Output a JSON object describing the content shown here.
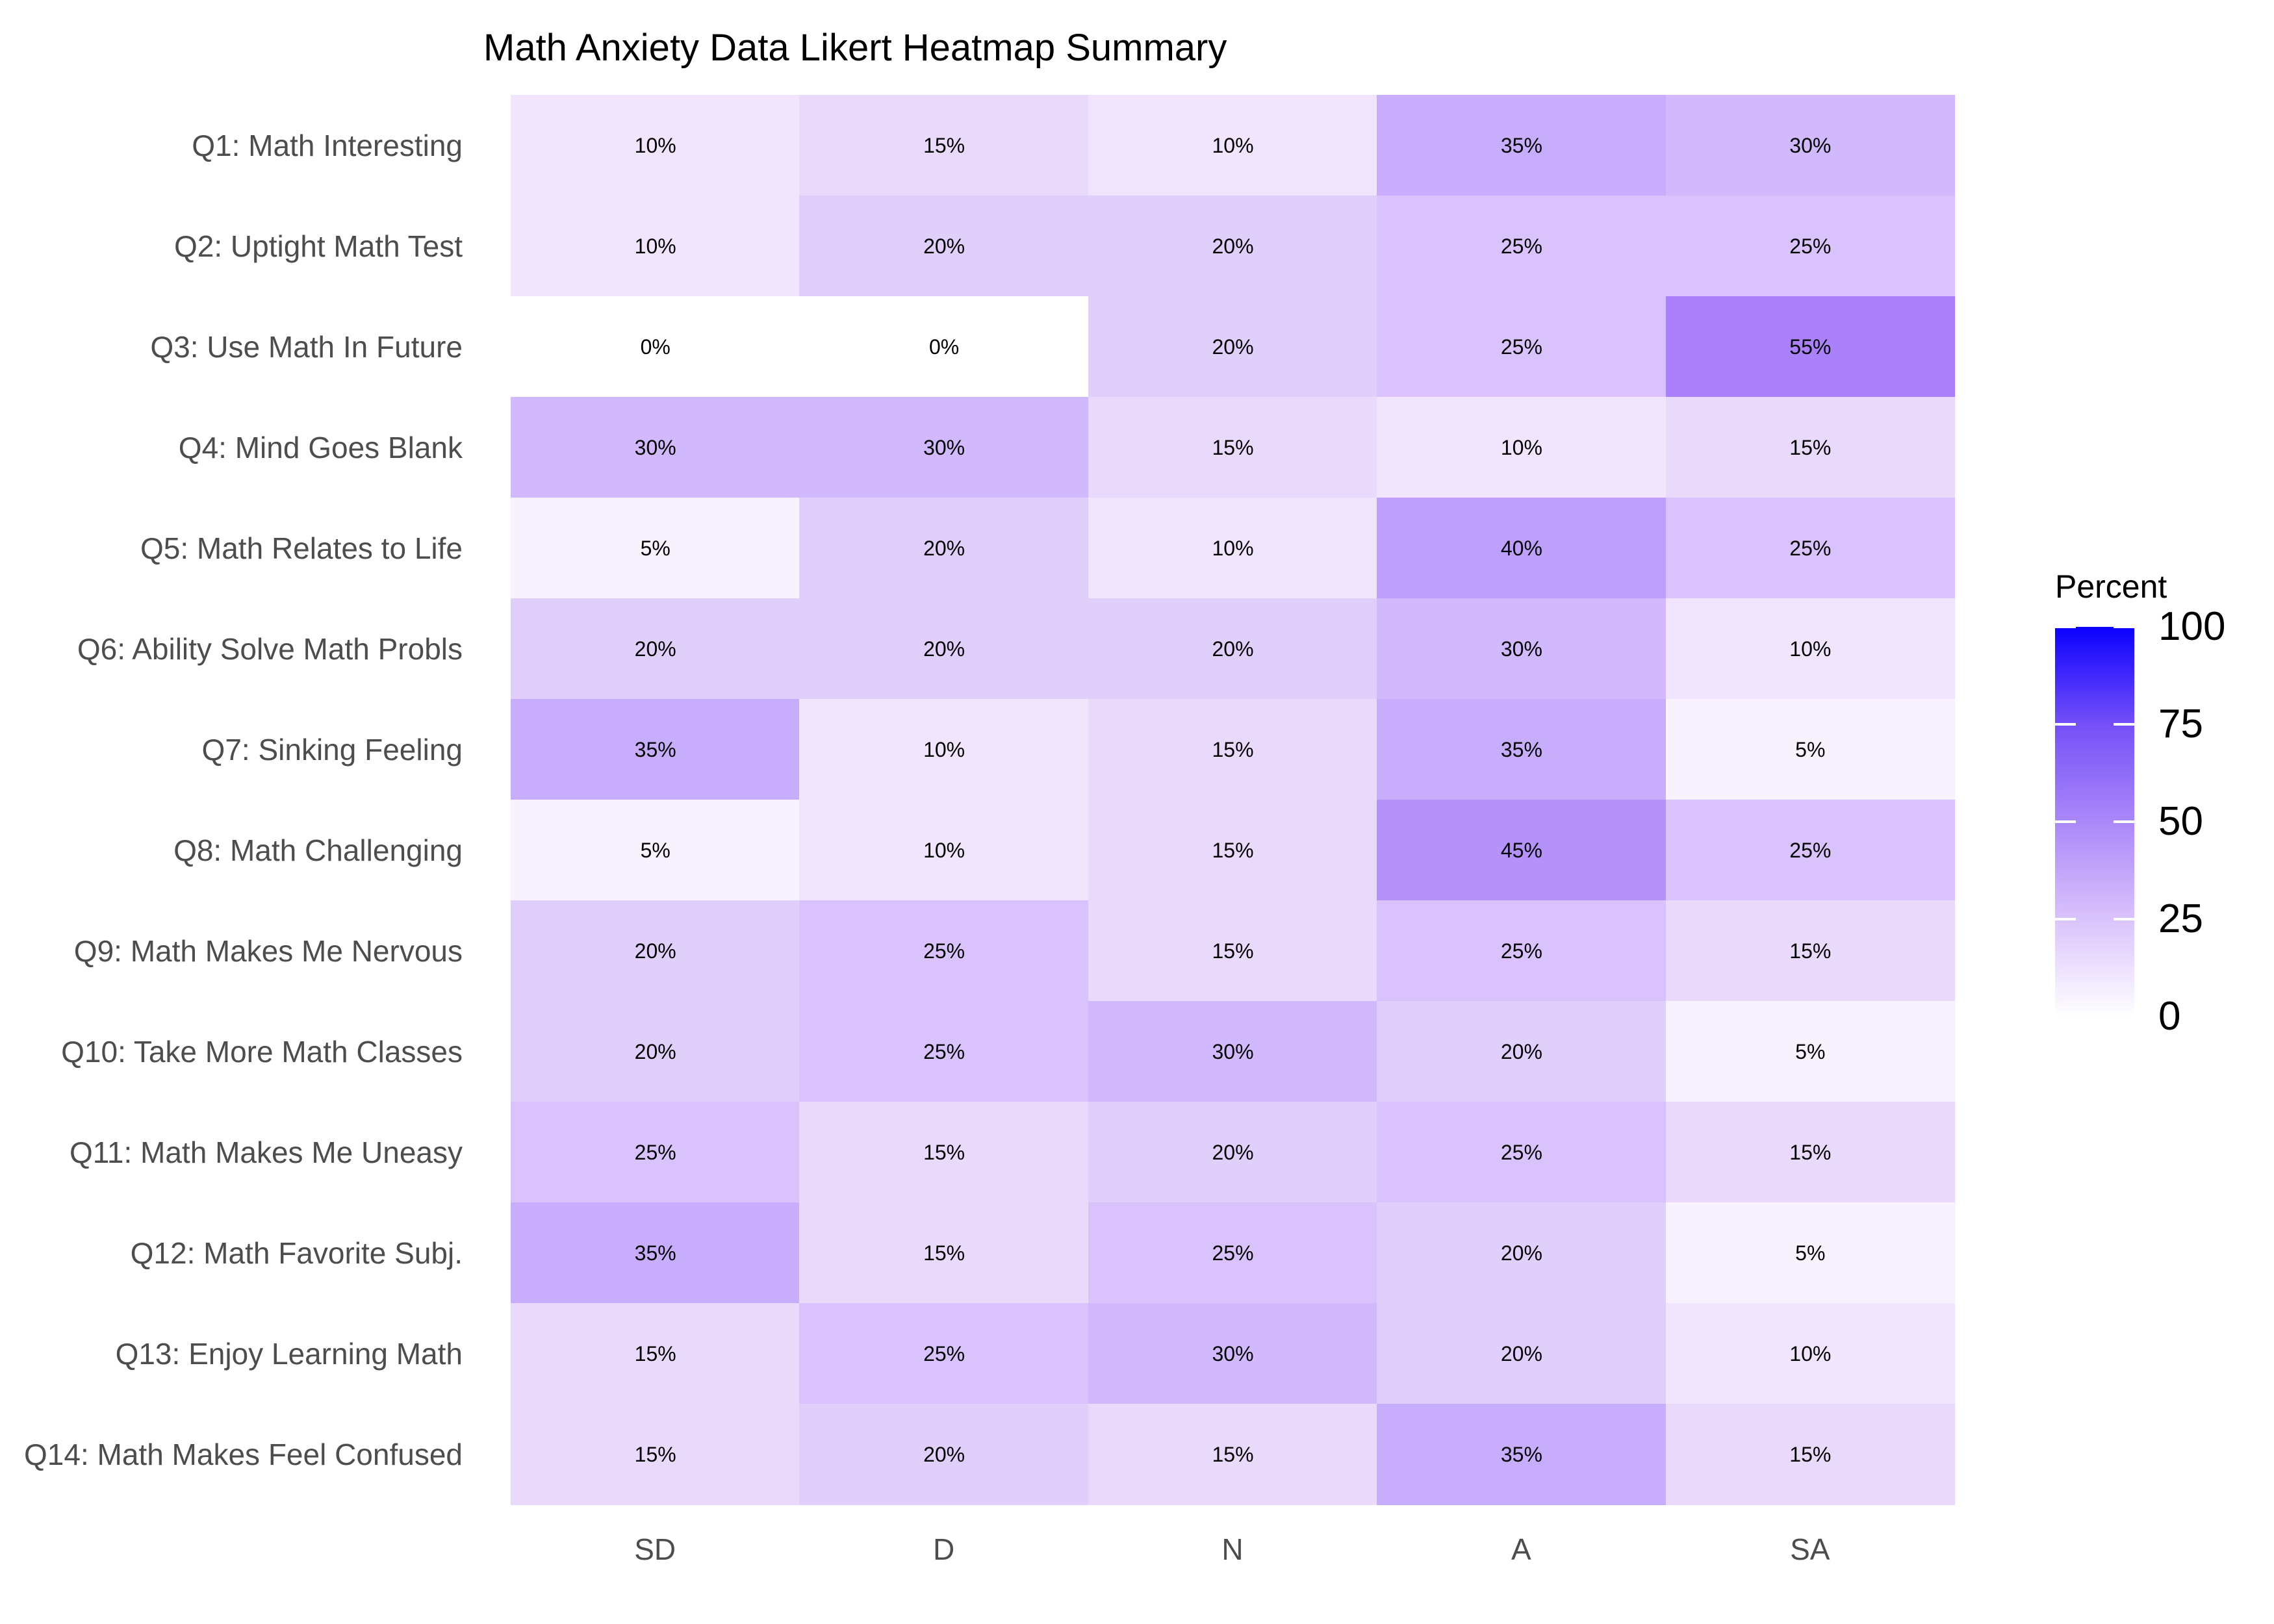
{
  "chart_data": {
    "type": "heatmap",
    "title": "Math Anxiety Data Likert Heatmap Summary",
    "rows": [
      "Q1: Math Interesting",
      "Q2: Uptight Math Test",
      "Q3: Use Math In Future",
      "Q4: Mind Goes Blank",
      "Q5: Math Relates to Life",
      "Q6: Ability Solve Math Probls",
      "Q7: Sinking Feeling",
      "Q8: Math Challenging",
      "Q9: Math Makes Me Nervous",
      "Q10: Take More Math Classes",
      "Q11: Math Makes Me Uneasy",
      "Q12: Math Favorite Subj.",
      "Q13: Enjoy Learning Math",
      "Q14: Math Makes Feel Confused"
    ],
    "columns": [
      "SD",
      "D",
      "N",
      "A",
      "SA"
    ],
    "values": [
      [
        10,
        15,
        10,
        35,
        30
      ],
      [
        10,
        20,
        20,
        25,
        25
      ],
      [
        0,
        0,
        20,
        25,
        55
      ],
      [
        30,
        30,
        15,
        10,
        15
      ],
      [
        5,
        20,
        10,
        40,
        25
      ],
      [
        20,
        20,
        20,
        30,
        10
      ],
      [
        35,
        10,
        15,
        35,
        5
      ],
      [
        5,
        10,
        15,
        45,
        25
      ],
      [
        20,
        25,
        15,
        25,
        15
      ],
      [
        20,
        25,
        30,
        20,
        5
      ],
      [
        25,
        15,
        20,
        25,
        15
      ],
      [
        35,
        15,
        25,
        20,
        5
      ],
      [
        15,
        25,
        30,
        20,
        10
      ],
      [
        15,
        20,
        15,
        35,
        15
      ]
    ],
    "cell_labels": [
      [
        "10%",
        "15%",
        "10%",
        "35%",
        "30%"
      ],
      [
        "10%",
        "20%",
        "20%",
        "25%",
        "25%"
      ],
      [
        "0%",
        "0%",
        "20%",
        "25%",
        "55%"
      ],
      [
        "30%",
        "30%",
        "15%",
        "10%",
        "15%"
      ],
      [
        "5%",
        "20%",
        "10%",
        "40%",
        "25%"
      ],
      [
        "20%",
        "20%",
        "20%",
        "30%",
        "10%"
      ],
      [
        "35%",
        "10%",
        "15%",
        "35%",
        "5%"
      ],
      [
        "5%",
        "10%",
        "15%",
        "45%",
        "25%"
      ],
      [
        "20%",
        "25%",
        "15%",
        "25%",
        "15%"
      ],
      [
        "20%",
        "25%",
        "30%",
        "20%",
        "5%"
      ],
      [
        "25%",
        "15%",
        "20%",
        "25%",
        "15%"
      ],
      [
        "35%",
        "15%",
        "25%",
        "20%",
        "5%"
      ],
      [
        "15%",
        "25%",
        "30%",
        "20%",
        "10%"
      ],
      [
        "15%",
        "20%",
        "15%",
        "35%",
        "15%"
      ]
    ],
    "color_map": {
      "0": "#FFFFFF",
      "5": "#F8F1FE",
      "10": "#F1E5FD",
      "15": "#E9DAFC",
      "20": "#E0CFFB",
      "25": "#DAC3FC",
      "30": "#D2B8FC",
      "35": "#C9ADFD",
      "40": "#BF9FFC",
      "45": "#B591FA",
      "55": "#AA80FB"
    },
    "legend": {
      "title": "Percent",
      "ticks": [
        0,
        25,
        50,
        75,
        100
      ],
      "min": 0,
      "max": 100,
      "position": "right",
      "gradient_stops": [
        {
          "pos": 0,
          "color": "#FFFFFF"
        },
        {
          "pos": 25,
          "color": "#DAC3FC"
        },
        {
          "pos": 50,
          "color": "#AA88F9"
        },
        {
          "pos": 75,
          "color": "#7550F8"
        },
        {
          "pos": 100,
          "color": "#0B00FF"
        }
      ]
    },
    "text_color_axis": "#4D4D4D",
    "text_color_values": "#000000",
    "grid": "off"
  }
}
